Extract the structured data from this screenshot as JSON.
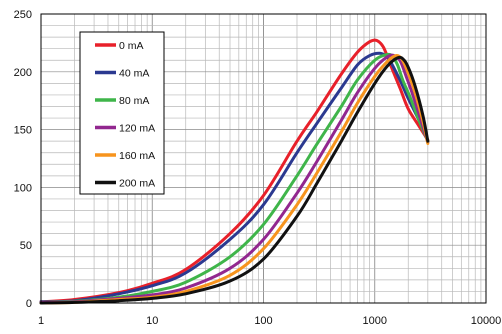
{
  "chart_data": {
    "type": "line",
    "xscale": "log",
    "xlim": [
      1,
      10000
    ],
    "ylim": [
      0,
      250
    ],
    "x_ticks": [
      "1",
      "10",
      "100",
      "1000",
      "10000"
    ],
    "y_ticks": [
      "0",
      "50",
      "100",
      "150",
      "200",
      "250"
    ],
    "grid": true,
    "legend_position": "top-left",
    "series": [
      {
        "name": "0 mA",
        "color": "#e8202a",
        "x": [
          1,
          2,
          5,
          10,
          20,
          50,
          100,
          200,
          300,
          500,
          700,
          900,
          1050,
          1200,
          1400,
          1700,
          2000,
          2500,
          3000
        ],
        "values": [
          1,
          3,
          9,
          17,
          29,
          60,
          93,
          140,
          165,
          198,
          217,
          226,
          227,
          221,
          205,
          185,
          168,
          153,
          141
        ]
      },
      {
        "name": "40 mA",
        "color": "#2b3990",
        "x": [
          1,
          2,
          5,
          10,
          20,
          50,
          100,
          200,
          300,
          500,
          700,
          900,
          1100,
          1250,
          1400,
          1700,
          2000,
          2500,
          3000
        ],
        "values": [
          1,
          2,
          8,
          15,
          26,
          55,
          85,
          130,
          155,
          186,
          206,
          214,
          216,
          214,
          208,
          192,
          177,
          158,
          140
        ]
      },
      {
        "name": "80 mA",
        "color": "#3fb54a",
        "x": [
          1,
          2,
          5,
          10,
          20,
          50,
          100,
          200,
          300,
          500,
          700,
          1000,
          1300,
          1450,
          1600,
          1800,
          2100,
          2500,
          3000
        ],
        "values": [
          0.5,
          1.5,
          5,
          10,
          18,
          40,
          68,
          110,
          137,
          170,
          193,
          210,
          215,
          213,
          206,
          192,
          177,
          158,
          140
        ]
      },
      {
        "name": "120 mA",
        "color": "#92278f",
        "x": [
          1,
          2,
          5,
          10,
          20,
          50,
          100,
          200,
          300,
          500,
          700,
          1000,
          1300,
          1500,
          1700,
          1900,
          2200,
          2600,
          3000
        ],
        "values": [
          0.5,
          1,
          4,
          7,
          13,
          30,
          55,
          95,
          122,
          158,
          182,
          203,
          213,
          214,
          209,
          197,
          180,
          158,
          139
        ]
      },
      {
        "name": "160 mA",
        "color": "#f7941d",
        "x": [
          1,
          2,
          5,
          10,
          20,
          50,
          100,
          200,
          300,
          500,
          700,
          1000,
          1300,
          1550,
          1750,
          2000,
          2300,
          2700,
          3000
        ],
        "values": [
          0,
          0.5,
          3,
          5,
          10,
          24,
          47,
          85,
          112,
          148,
          173,
          196,
          209,
          214,
          211,
          199,
          182,
          158,
          138
        ]
      },
      {
        "name": "200 mA",
        "color": "#111111",
        "x": [
          1,
          2,
          5,
          10,
          20,
          50,
          100,
          200,
          300,
          500,
          700,
          1000,
          1300,
          1600,
          1800,
          2000,
          2300,
          2700,
          3000
        ],
        "values": [
          0,
          0.5,
          2,
          4,
          8,
          19,
          38,
          75,
          103,
          140,
          165,
          190,
          205,
          212,
          211,
          204,
          188,
          163,
          140
        ]
      }
    ]
  }
}
